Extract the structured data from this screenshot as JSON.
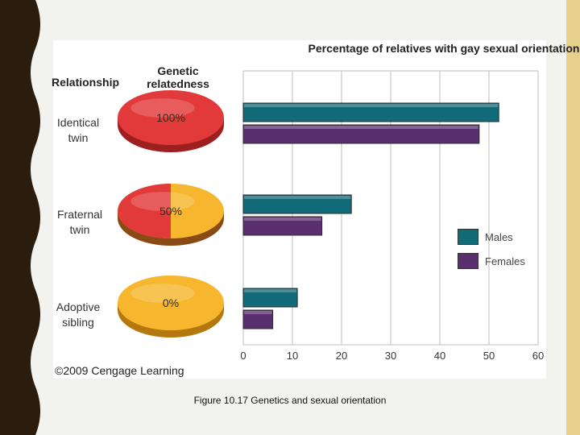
{
  "caption": "Figure 10.17  Genetics and sexual orientation",
  "figure": {
    "col_relationship": "Relationship",
    "col_genetic": "Genetic relatedness",
    "copyright": "©2009 Cengage Learning",
    "rows": [
      {
        "relationship_line1": "Identical",
        "relationship_line2": "twin",
        "relatedness": "100%",
        "shared_fraction": 1.0
      },
      {
        "relationship_line1": "Fraternal",
        "relationship_line2": "twin",
        "relatedness": "50%",
        "shared_fraction": 0.5
      },
      {
        "relationship_line1": "Adoptive",
        "relationship_line2": "sibling",
        "relatedness": "0%",
        "shared_fraction": 0.0
      }
    ]
  },
  "chart_data": {
    "type": "bar",
    "orientation": "horizontal",
    "title": "Percentage of relatives with gay sexual orientation",
    "categories": [
      "Identical twin",
      "Fraternal twin",
      "Adoptive sibling"
    ],
    "series": [
      {
        "name": "Males",
        "values": [
          52,
          22,
          11
        ],
        "color": "#116a78"
      },
      {
        "name": "Females",
        "values": [
          48,
          16,
          6
        ],
        "color": "#5a2f6e"
      }
    ],
    "xlim": [
      0,
      60
    ],
    "xticks": [
      0,
      10,
      20,
      30,
      40,
      50,
      60
    ],
    "grid": true,
    "legend": "right",
    "xlabel": "",
    "ylabel": ""
  },
  "colors": {
    "related": "#e23a3a",
    "unrelated": "#f6b72e",
    "border": "#2a1d0e"
  }
}
